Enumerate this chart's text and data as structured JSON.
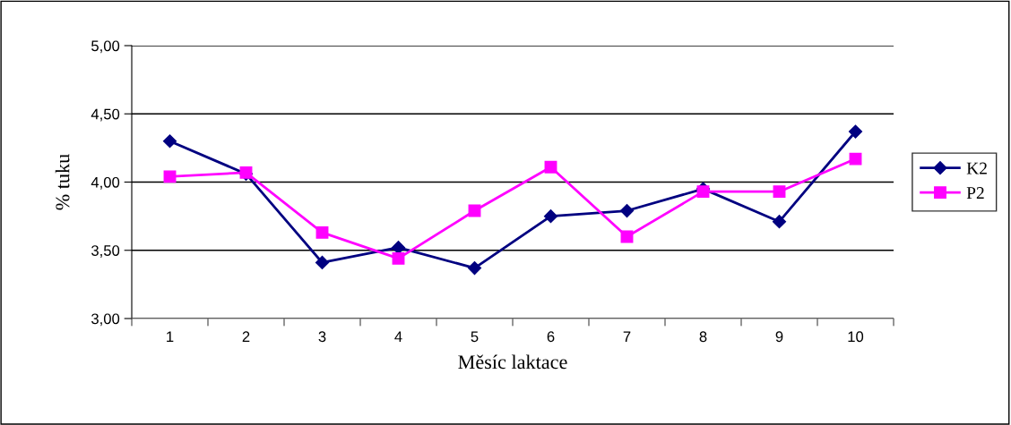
{
  "chart_data": {
    "type": "line",
    "xlabel": "Měsíc laktace",
    "ylabel": "% tuku",
    "categories": [
      "1",
      "2",
      "3",
      "4",
      "5",
      "6",
      "7",
      "8",
      "9",
      "10"
    ],
    "series": [
      {
        "name": "K2",
        "color": "#000080",
        "marker": "diamond",
        "values": [
          4.3,
          4.06,
          3.41,
          3.52,
          3.37,
          3.75,
          3.79,
          3.95,
          3.71,
          4.37
        ]
      },
      {
        "name": "P2",
        "color": "#ff00ff",
        "marker": "square",
        "values": [
          4.04,
          4.07,
          3.63,
          3.44,
          3.79,
          4.11,
          3.6,
          3.93,
          3.93,
          4.17
        ]
      }
    ],
    "ylim": [
      3.0,
      5.0
    ],
    "yticks": [
      {
        "value": 3.0,
        "label": "3,00"
      },
      {
        "value": 3.5,
        "label": "3,50"
      },
      {
        "value": 4.0,
        "label": "4,00"
      },
      {
        "value": 4.5,
        "label": "4,50"
      },
      {
        "value": 5.0,
        "label": "5,00"
      }
    ],
    "grid": "y",
    "legend": "right",
    "line_style": "solid"
  }
}
